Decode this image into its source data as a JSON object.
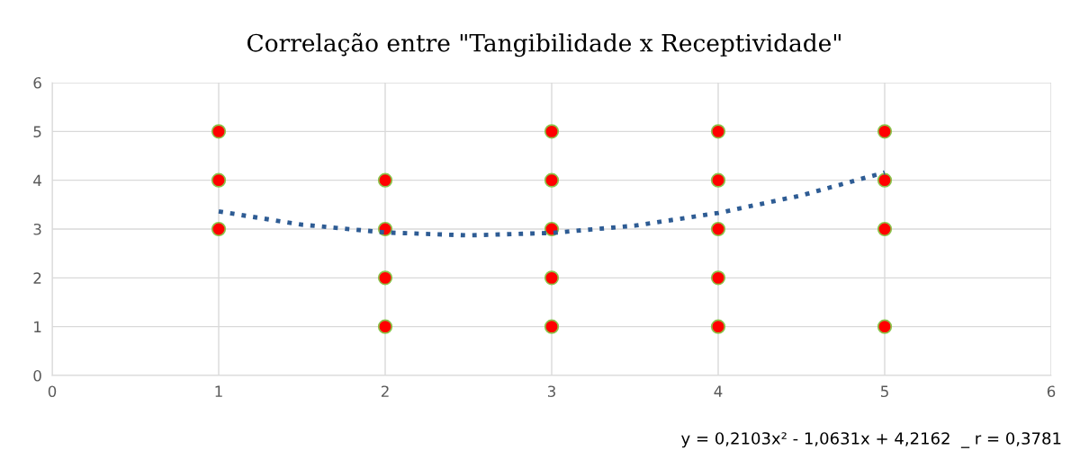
{
  "chart_data": {
    "type": "scatter",
    "title": "Correlação entre \"Tangibilidade x Receptividade\"",
    "series": [
      {
        "color": "#ff0000",
        "x": [
          1,
          1,
          1,
          2,
          2,
          2,
          2,
          3,
          3,
          3,
          3,
          3,
          4,
          4,
          4,
          4,
          4,
          5,
          5,
          5,
          5
        ],
        "values": [
          3,
          4,
          5,
          1,
          2,
          3,
          4,
          1,
          2,
          3,
          4,
          5,
          1,
          2,
          3,
          4,
          5,
          1,
          3,
          4,
          5
        ],
        "marker": "circle"
      },
      {
        "type": "line",
        "color": "#2e5c94",
        "line_style": "dotted",
        "marker": "none",
        "x": [
          1,
          1.5,
          2,
          2.5,
          3,
          3.5,
          4,
          4.5,
          5
        ],
        "values": [
          3.36,
          3.09,
          2.93,
          2.87,
          2.92,
          3.07,
          3.33,
          3.69,
          4.16
        ]
      }
    ],
    "xlim": [
      0,
      6
    ],
    "ylim": [
      0,
      6
    ],
    "xticks": [
      0,
      1,
      2,
      3,
      4,
      5,
      6
    ],
    "yticks": [
      0,
      1,
      2,
      3,
      4,
      5,
      6
    ],
    "grid": true,
    "legend": false,
    "annotations": [
      "y = 0,2103x² - 1,0631x + 4,2162  _ r = 0,3781"
    ]
  }
}
